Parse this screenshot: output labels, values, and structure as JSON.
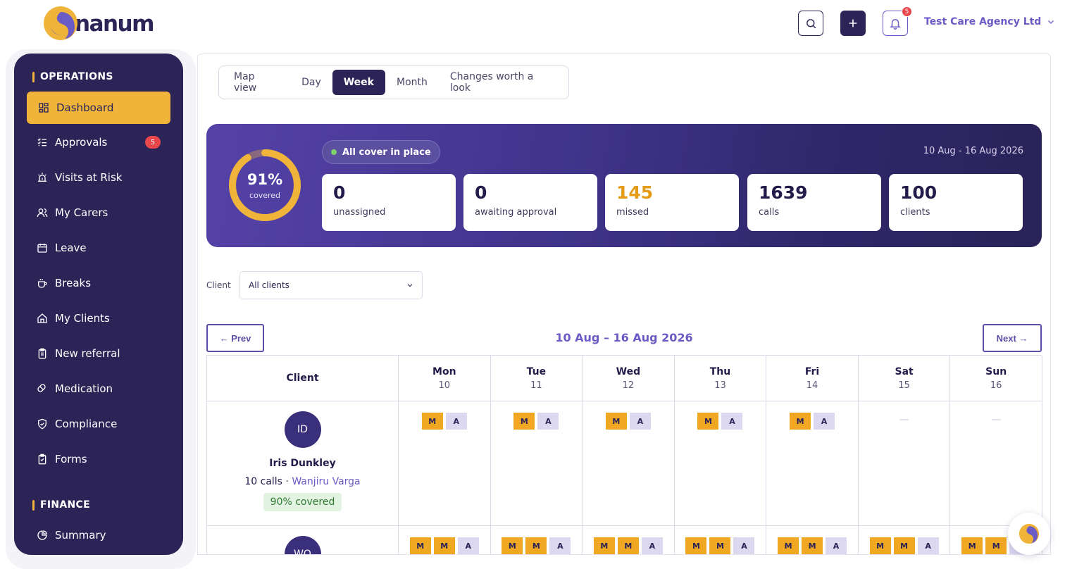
{
  "brand": {
    "name": "nanum",
    "accent": "#f0b43a",
    "primary": "#2c2457",
    "link": "#6b5bc4"
  },
  "header": {
    "search_icon": "search-icon",
    "add_icon": "plus-icon",
    "notifications": {
      "icon": "bell-icon",
      "count": "5"
    },
    "org_name": "Test Care Agency Ltd"
  },
  "sidebar": {
    "sections": [
      {
        "title": "OPERATIONS",
        "items": [
          {
            "label": "Dashboard",
            "icon": "grid-icon",
            "active": true
          },
          {
            "label": "Approvals",
            "icon": "checklist-icon",
            "badge": "5"
          },
          {
            "label": "Visits at Risk",
            "icon": "alarm-icon"
          },
          {
            "label": "My Carers",
            "icon": "users-icon"
          },
          {
            "label": "Leave",
            "icon": "calendar-icon"
          },
          {
            "label": "Breaks",
            "icon": "coffee-icon"
          },
          {
            "label": "My Clients",
            "icon": "home-icon"
          },
          {
            "label": "New referral",
            "icon": "clipboard-icon"
          },
          {
            "label": "Medication",
            "icon": "pill-icon"
          },
          {
            "label": "Compliance",
            "icon": "shield-check-icon"
          },
          {
            "label": "Forms",
            "icon": "clipboard-check-icon"
          }
        ]
      },
      {
        "title": "FINANCE",
        "items": [
          {
            "label": "Summary",
            "icon": "pie-chart-icon"
          }
        ]
      }
    ]
  },
  "tabs": [
    {
      "label": "Map view",
      "active": false
    },
    {
      "label": "Day",
      "active": false
    },
    {
      "label": "Week",
      "active": true
    },
    {
      "label": "Month",
      "active": false
    },
    {
      "label": "Changes worth a look",
      "active": false
    }
  ],
  "summary": {
    "coverage_percent": 91,
    "coverage_text": "91%",
    "coverage_label": "covered",
    "status": "All cover in place",
    "date_range": "10 Aug - 16 Aug 2026",
    "stats": [
      {
        "value": "0",
        "label": "unassigned"
      },
      {
        "value": "0",
        "label": "awaiting approval"
      },
      {
        "value": "145",
        "label": "missed",
        "highlight": true
      },
      {
        "value": "1639",
        "label": "calls"
      },
      {
        "value": "100",
        "label": "clients"
      }
    ]
  },
  "filter": {
    "label": "Client",
    "value": "All clients"
  },
  "week_nav": {
    "prev": "← Prev",
    "next": "Next →",
    "title": "10 Aug – 16 Aug 2026"
  },
  "schedule": {
    "client_header": "Client",
    "days": [
      {
        "day": "Mon",
        "date": "10"
      },
      {
        "day": "Tue",
        "date": "11"
      },
      {
        "day": "Wed",
        "date": "12"
      },
      {
        "day": "Thu",
        "date": "13"
      },
      {
        "day": "Fri",
        "date": "14"
      },
      {
        "day": "Sat",
        "date": "15"
      },
      {
        "day": "Sun",
        "date": "16"
      }
    ],
    "rows": [
      {
        "initials": "ID",
        "name": "Iris Dunkley",
        "calls": "10 calls ·",
        "carer": "Wanjiru Varga",
        "covered": "90% covered",
        "visits": [
          [
            "M",
            "A"
          ],
          [
            "M",
            "A"
          ],
          [
            "M",
            "A"
          ],
          [
            "M",
            "A"
          ],
          [
            "M",
            "A"
          ],
          [],
          []
        ]
      },
      {
        "initials": "WO",
        "visits": [
          [
            "M",
            "M",
            "A"
          ],
          [
            "M",
            "M",
            "A"
          ],
          [
            "M",
            "M",
            "A"
          ],
          [
            "M",
            "M",
            "A"
          ],
          [
            "M",
            "M",
            "A"
          ],
          [
            "M",
            "M",
            "A"
          ],
          [
            "M",
            "M",
            "A"
          ]
        ]
      }
    ],
    "empty_marker": "—"
  }
}
